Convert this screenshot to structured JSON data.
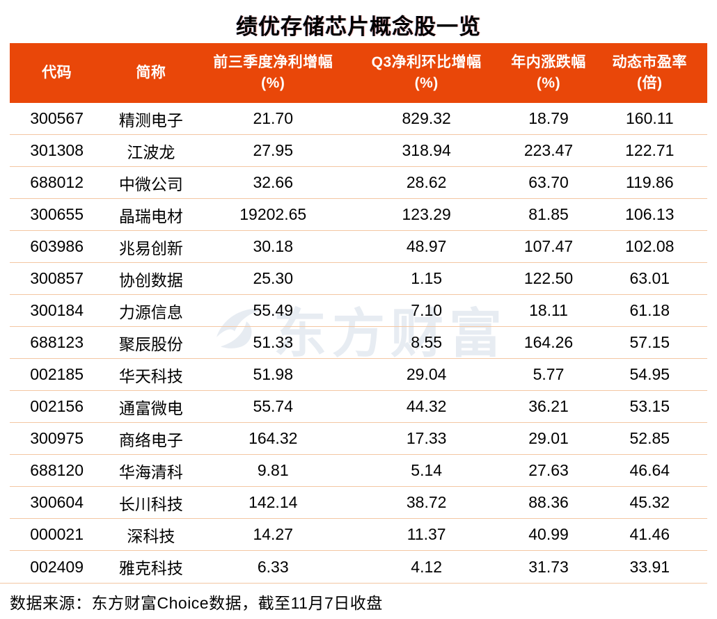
{
  "title": "绩优存储芯片概念股一览",
  "watermark": {
    "text": "东方财富",
    "logo_icon": "eastmoney-swoosh-icon"
  },
  "footer": {
    "text": "数据来源：东方财富Choice数据，截至11月7日收盘"
  },
  "colors": {
    "header_bg": "#E94709",
    "header_text": "#FFFFFF",
    "row_divider": "#F3C6A2",
    "title_text": "#000000",
    "cell_text": "#000000",
    "watermark": "#E7ECF2",
    "page_bg": "#FFFFFF"
  },
  "chart_data": {
    "type": "table",
    "title": "绩优存储芯片概念股一览",
    "columns": [
      {
        "line1": "代码",
        "line2": ""
      },
      {
        "line1": "简称",
        "line2": ""
      },
      {
        "line1": "前三季度净利增幅",
        "line2": "(%)"
      },
      {
        "line1": "Q3净利环比增幅",
        "line2": "(%)"
      },
      {
        "line1": "年内涨跌幅",
        "line2": "(%)"
      },
      {
        "line1": "动态市盈率",
        "line2": "(倍)"
      }
    ],
    "rows": [
      [
        "300567",
        "精测电子",
        "21.70",
        "829.32",
        "18.79",
        "160.11"
      ],
      [
        "301308",
        "江波龙",
        "27.95",
        "318.94",
        "223.47",
        "122.71"
      ],
      [
        "688012",
        "中微公司",
        "32.66",
        "28.62",
        "63.70",
        "119.86"
      ],
      [
        "300655",
        "晶瑞电材",
        "19202.65",
        "123.29",
        "81.85",
        "106.13"
      ],
      [
        "603986",
        "兆易创新",
        "30.18",
        "48.97",
        "107.47",
        "102.08"
      ],
      [
        "300857",
        "协创数据",
        "25.30",
        "1.15",
        "122.50",
        "63.01"
      ],
      [
        "300184",
        "力源信息",
        "55.49",
        "7.10",
        "18.11",
        "61.18"
      ],
      [
        "688123",
        "聚辰股份",
        "51.33",
        "8.55",
        "164.26",
        "57.15"
      ],
      [
        "002185",
        "华天科技",
        "51.98",
        "29.04",
        "5.77",
        "54.95"
      ],
      [
        "002156",
        "通富微电",
        "55.74",
        "44.32",
        "36.21",
        "53.15"
      ],
      [
        "300975",
        "商络电子",
        "164.32",
        "17.33",
        "29.01",
        "52.85"
      ],
      [
        "688120",
        "华海清科",
        "9.81",
        "5.14",
        "27.63",
        "46.64"
      ],
      [
        "300604",
        "长川科技",
        "142.14",
        "38.72",
        "88.36",
        "45.32"
      ],
      [
        "000021",
        "深科技",
        "14.27",
        "11.37",
        "40.99",
        "41.46"
      ],
      [
        "002409",
        "雅克科技",
        "6.33",
        "4.12",
        "31.73",
        "33.91"
      ]
    ],
    "source_note": "数据来源：东方财富Choice数据，截至11月7日收盘"
  }
}
